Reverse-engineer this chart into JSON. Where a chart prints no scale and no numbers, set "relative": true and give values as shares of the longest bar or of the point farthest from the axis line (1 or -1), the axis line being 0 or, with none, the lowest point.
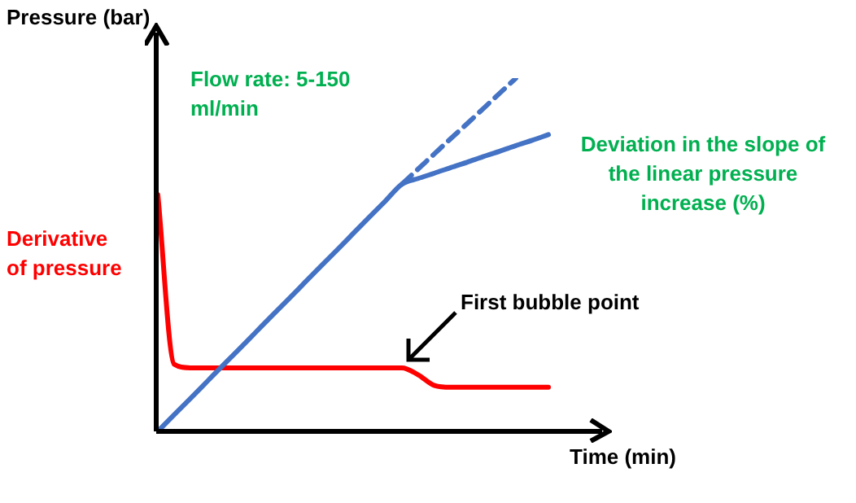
{
  "chart_data": {
    "type": "line",
    "relative": true,
    "xlabel": "Time (min)",
    "ylabel": "Pressure (bar)",
    "categories": [
      null,
      null,
      null,
      null,
      null,
      null,
      null,
      null,
      null,
      null,
      null,
      null,
      null,
      null,
      null,
      null,
      null,
      null,
      null,
      null,
      null,
      null,
      null,
      null,
      null
    ],
    "series": [
      {
        "color": "#4472c4",
        "line_style": "solid",
        "values": [
          0,
          0.047,
          0.093,
          0.14,
          0.187,
          0.233,
          0.28,
          0.327,
          0.373,
          0.42,
          0.467,
          0.513,
          0.56,
          0.607,
          0.653,
          0.7,
          0.716,
          0.731,
          0.747,
          0.762,
          0.778,
          0.793,
          0.809,
          0.824,
          0.84
        ]
      },
      {
        "color": "#4472c4",
        "line_style": "dashed",
        "values": [
          null,
          null,
          null,
          null,
          null,
          null,
          null,
          null,
          null,
          null,
          null,
          null,
          null,
          null,
          null,
          0.7,
          0.743,
          0.786,
          0.829,
          0.871,
          0.914,
          0.957,
          1.0,
          null,
          null
        ]
      },
      {
        "name": "Derivative of pressure",
        "color": "#ff0000",
        "line_style": "solid",
        "values": [
          0.67,
          0.19,
          0.18,
          0.18,
          0.18,
          0.18,
          0.18,
          0.18,
          0.18,
          0.18,
          0.18,
          0.18,
          0.18,
          0.18,
          0.18,
          0.18,
          0.16,
          0.13,
          0.125,
          0.125,
          0.125,
          0.125,
          0.125,
          0.125,
          0.125
        ]
      }
    ],
    "annotations": [
      "Flow rate: 5-150 ml/min",
      "Deviation in the slope of the linear pressure increase (%)",
      "First bubble point"
    ],
    "legend": false,
    "grid": false,
    "marker": "none"
  }
}
